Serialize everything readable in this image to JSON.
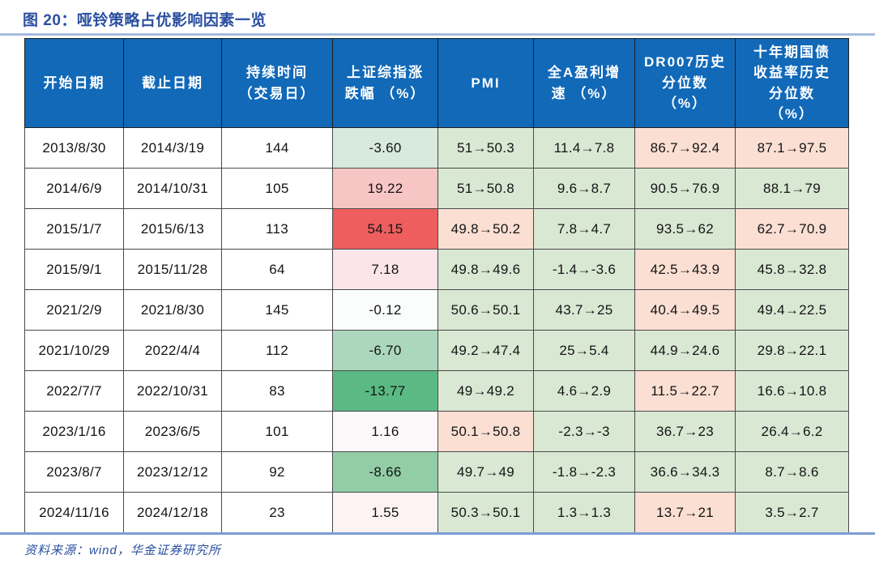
{
  "title": "图 20：哑铃策略占优影响因素一览",
  "source": "资料来源：wind，华金证券研究所",
  "colors": {
    "header_bg": "#1169b8",
    "header_text": "#ffffff",
    "title_text": "#2a4fa0",
    "rule_top": "#a6bbdc",
    "rule_bottom": "#7b9fd4",
    "cell_green": "#d9e8d3",
    "cell_pink": "#fbdfd3",
    "scale_red_max": "#ee5e5e",
    "scale_green_max": "#5bba84"
  },
  "table": {
    "headers": [
      {
        "label": "开始日期"
      },
      {
        "label": "截止日期"
      },
      {
        "label": "持续时间\n（交易日）"
      },
      {
        "label": "上证综指涨\n跌幅 （%）"
      },
      {
        "label": "PMI"
      },
      {
        "label": "全A盈利增\n速 （%）"
      },
      {
        "label": "DR007历史\n分位数\n（%）"
      },
      {
        "label": "十年期国债\n收益率历史\n分位数\n（%）"
      }
    ],
    "rows": [
      {
        "cells": [
          {
            "text": "2013/8/30"
          },
          {
            "text": "2014/3/19"
          },
          {
            "text": "144"
          },
          {
            "text": "-3.60",
            "bg": "#d8e9dd"
          },
          {
            "text": "51→50.3",
            "bg": "#d9e8d3"
          },
          {
            "text": "11.4→7.8",
            "bg": "#d9e8d3"
          },
          {
            "text": "86.7→92.4",
            "bg": "#fbdfd3"
          },
          {
            "text": "87.1→97.5",
            "bg": "#fbdfd3"
          }
        ]
      },
      {
        "cells": [
          {
            "text": "2014/6/9"
          },
          {
            "text": "2014/10/31"
          },
          {
            "text": "105"
          },
          {
            "text": "19.22",
            "bg": "#f8c5c5"
          },
          {
            "text": "51→50.8",
            "bg": "#d9e8d3"
          },
          {
            "text": "9.6→8.7",
            "bg": "#d9e8d3"
          },
          {
            "text": "90.5→76.9",
            "bg": "#d9e8d3"
          },
          {
            "text": "88.1→79",
            "bg": "#d9e8d3"
          }
        ]
      },
      {
        "cells": [
          {
            "text": "2015/1/7"
          },
          {
            "text": "2015/6/13"
          },
          {
            "text": "113"
          },
          {
            "text": "54.15",
            "bg": "#ee5e5e"
          },
          {
            "text": "49.8→50.2",
            "bg": "#fbdfd3"
          },
          {
            "text": "7.8→4.7",
            "bg": "#d9e8d3"
          },
          {
            "text": "93.5→62",
            "bg": "#d9e8d3"
          },
          {
            "text": "62.7→70.9",
            "bg": "#fbdfd3"
          }
        ]
      },
      {
        "cells": [
          {
            "text": "2015/9/1"
          },
          {
            "text": "2015/11/28"
          },
          {
            "text": "64"
          },
          {
            "text": "7.18",
            "bg": "#fbe5e8"
          },
          {
            "text": "49.8→49.6",
            "bg": "#d9e8d3"
          },
          {
            "text": "-1.4→-3.6",
            "bg": "#d9e8d3"
          },
          {
            "text": "42.5→43.9",
            "bg": "#fbdfd3"
          },
          {
            "text": "45.8→32.8",
            "bg": "#d9e8d3"
          }
        ]
      },
      {
        "cells": [
          {
            "text": "2021/2/9"
          },
          {
            "text": "2021/8/30"
          },
          {
            "text": "145"
          },
          {
            "text": "-0.12",
            "bg": "#fbfdfd"
          },
          {
            "text": "50.6→50.1",
            "bg": "#d9e8d3"
          },
          {
            "text": "43.7→25",
            "bg": "#d9e8d3"
          },
          {
            "text": "40.4→49.5",
            "bg": "#fbdfd3"
          },
          {
            "text": "49.4→22.5",
            "bg": "#d9e8d3"
          }
        ]
      },
      {
        "cells": [
          {
            "text": "2021/10/29"
          },
          {
            "text": "2022/4/4"
          },
          {
            "text": "112"
          },
          {
            "text": "-6.70",
            "bg": "#abd8bd"
          },
          {
            "text": "49.2→47.4",
            "bg": "#d9e8d3"
          },
          {
            "text": "25→5.4",
            "bg": "#d9e8d3"
          },
          {
            "text": "44.9→24.6",
            "bg": "#d9e8d3"
          },
          {
            "text": "29.8→22.1",
            "bg": "#d9e8d3"
          }
        ]
      },
      {
        "cells": [
          {
            "text": "2022/7/7"
          },
          {
            "text": "2022/10/31"
          },
          {
            "text": "83"
          },
          {
            "text": "-13.77",
            "bg": "#5bba84"
          },
          {
            "text": "49→49.2",
            "bg": "#d9e8d3"
          },
          {
            "text": "4.6→2.9",
            "bg": "#d9e8d3"
          },
          {
            "text": "11.5→22.7",
            "bg": "#fbdfd3"
          },
          {
            "text": "16.6→10.8",
            "bg": "#d9e8d3"
          }
        ]
      },
      {
        "cells": [
          {
            "text": "2023/1/16"
          },
          {
            "text": "2023/6/5"
          },
          {
            "text": "101"
          },
          {
            "text": "1.16",
            "bg": "#fcf8f9"
          },
          {
            "text": "50.1→50.8",
            "bg": "#fbdfd3"
          },
          {
            "text": "-2.3→-3",
            "bg": "#d9e8d3"
          },
          {
            "text": "36.7→23",
            "bg": "#d9e8d3"
          },
          {
            "text": "26.4→6.2",
            "bg": "#d9e8d3"
          }
        ]
      },
      {
        "cells": [
          {
            "text": "2023/8/7"
          },
          {
            "text": "2023/12/12"
          },
          {
            "text": "92"
          },
          {
            "text": "-8.66",
            "bg": "#92cda6"
          },
          {
            "text": "49.7→49",
            "bg": "#d9e8d3"
          },
          {
            "text": "-1.8→-2.3",
            "bg": "#d9e8d3"
          },
          {
            "text": "36.6→34.3",
            "bg": "#d9e8d3"
          },
          {
            "text": "8.7→8.6",
            "bg": "#d9e8d3"
          }
        ]
      },
      {
        "cells": [
          {
            "text": "2024/11/16"
          },
          {
            "text": "2024/12/18"
          },
          {
            "text": "23"
          },
          {
            "text": "1.55",
            "bg": "#fdf3f4"
          },
          {
            "text": "50.3→50.1",
            "bg": "#d9e8d3"
          },
          {
            "text": "1.3→1.3",
            "bg": "#d9e8d3"
          },
          {
            "text": "13.7→21",
            "bg": "#fbdfd3"
          },
          {
            "text": "3.5→2.7",
            "bg": "#d9e8d3"
          }
        ]
      }
    ]
  },
  "chart_data": {
    "type": "table",
    "title": "图 20：哑铃策略占优影响因素一览",
    "columns": [
      "开始日期",
      "截止日期",
      "持续时间（交易日）",
      "上证综指涨跌幅（%）",
      "PMI",
      "全A盈利增速（%）",
      "DR007历史分位数（%）",
      "十年期国债收益率历史分位数（%）"
    ],
    "rows": [
      [
        "2013/8/30",
        "2014/3/19",
        "144",
        "-3.60",
        "51→50.3",
        "11.4→7.8",
        "86.7→92.4",
        "87.1→97.5"
      ],
      [
        "2014/6/9",
        "2014/10/31",
        "105",
        "19.22",
        "51→50.8",
        "9.6→8.7",
        "90.5→76.9",
        "88.1→79"
      ],
      [
        "2015/1/7",
        "2015/6/13",
        "113",
        "54.15",
        "49.8→50.2",
        "7.8→4.7",
        "93.5→62",
        "62.7→70.9"
      ],
      [
        "2015/9/1",
        "2015/11/28",
        "64",
        "7.18",
        "49.8→49.6",
        "-1.4→-3.6",
        "42.5→43.9",
        "45.8→32.8"
      ],
      [
        "2021/2/9",
        "2021/8/30",
        "145",
        "-0.12",
        "50.6→50.1",
        "43.7→25",
        "40.4→49.5",
        "49.4→22.5"
      ],
      [
        "2021/10/29",
        "2022/4/4",
        "112",
        "-6.70",
        "49.2→47.4",
        "25→5.4",
        "44.9→24.6",
        "29.8→22.1"
      ],
      [
        "2022/7/7",
        "2022/10/31",
        "83",
        "-13.77",
        "49→49.2",
        "4.6→2.9",
        "11.5→22.7",
        "16.6→10.8"
      ],
      [
        "2023/1/16",
        "2023/6/5",
        "101",
        "1.16",
        "50.1→50.8",
        "-2.3→-3",
        "36.7→23",
        "26.4→6.2"
      ],
      [
        "2023/8/7",
        "2023/12/12",
        "92",
        "-8.66",
        "49.7→49",
        "-1.8→-2.3",
        "36.6→34.3",
        "8.7→8.6"
      ],
      [
        "2024/11/16",
        "2024/12/18",
        "23",
        "1.55",
        "50.3→50.1",
        "1.3→1.3",
        "13.7→21",
        "3.5→2.7"
      ]
    ]
  }
}
